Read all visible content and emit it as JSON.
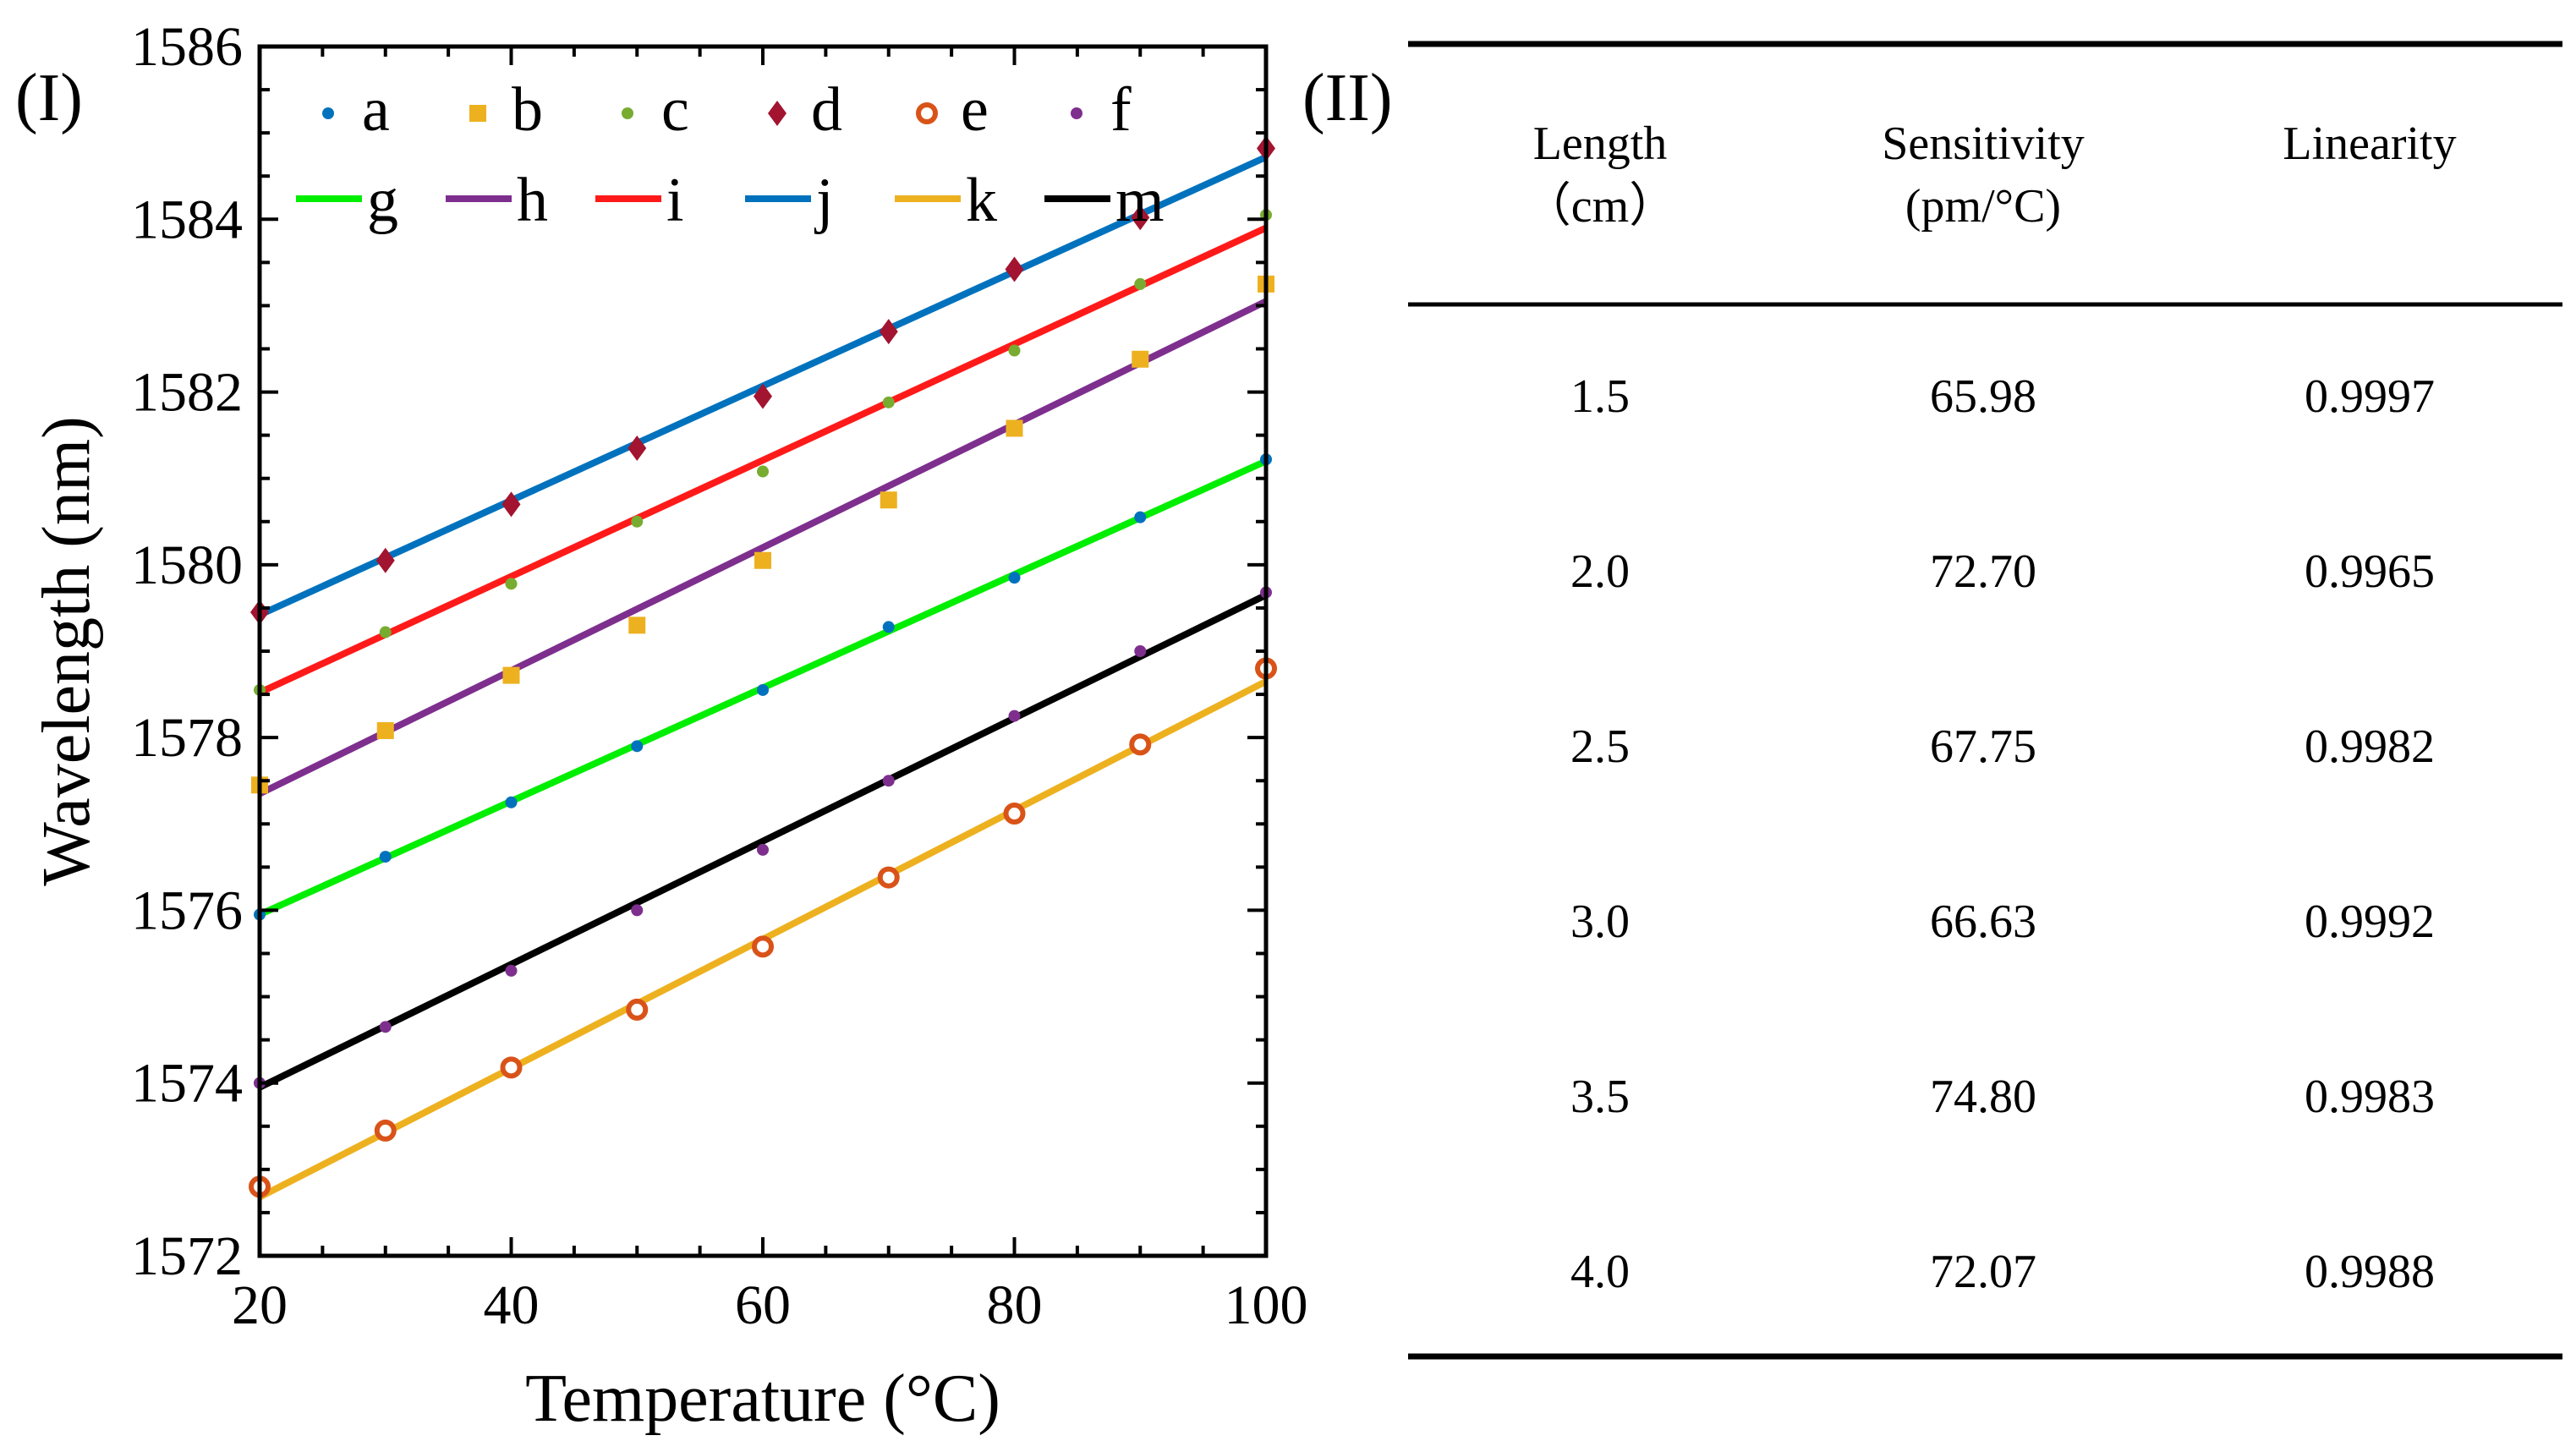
{
  "panels": {
    "left_label": "(I)",
    "right_label": "(II)"
  },
  "chart_data": {
    "type": "scatter",
    "title": "",
    "xlabel": "Temperature (°C)",
    "ylabel": "Wavelength (nm)",
    "xlim": [
      20,
      100
    ],
    "ylim": [
      1572,
      1586
    ],
    "xticks": [
      20,
      40,
      60,
      80,
      100
    ],
    "yticks": [
      1572,
      1574,
      1576,
      1578,
      1580,
      1582,
      1584,
      1586
    ],
    "grid": false,
    "legend_position": "top-left",
    "x": [
      20,
      30,
      40,
      50,
      60,
      70,
      80,
      90,
      100
    ],
    "scatter_series": [
      {
        "name": "a",
        "marker": "circle-small",
        "color": "#0072BD",
        "values": [
          1575.95,
          1576.62,
          1577.25,
          1577.9,
          1578.55,
          1579.28,
          1579.85,
          1580.55,
          1581.22
        ]
      },
      {
        "name": "b",
        "marker": "square",
        "color": "#EDB120",
        "values": [
          1577.45,
          1578.08,
          1578.72,
          1579.3,
          1580.05,
          1580.75,
          1581.58,
          1582.38,
          1583.25
        ]
      },
      {
        "name": "c",
        "marker": "circle-small",
        "color": "#77AC30",
        "values": [
          1578.55,
          1579.22,
          1579.78,
          1580.5,
          1581.08,
          1581.88,
          1582.48,
          1583.25,
          1584.05
        ]
      },
      {
        "name": "d",
        "marker": "diamond",
        "color": "#A2142F",
        "values": [
          1579.45,
          1580.05,
          1580.7,
          1581.35,
          1581.95,
          1582.7,
          1583.42,
          1584.02,
          1584.82
        ]
      },
      {
        "name": "e",
        "marker": "circle-open",
        "color": "#D95319",
        "values": [
          1572.8,
          1573.45,
          1574.18,
          1574.85,
          1575.58,
          1576.38,
          1577.12,
          1577.92,
          1578.8
        ]
      },
      {
        "name": "f",
        "marker": "circle-small",
        "color": "#7E2F8E",
        "values": [
          1574.0,
          1574.65,
          1575.3,
          1576.0,
          1576.7,
          1577.5,
          1578.25,
          1579.0,
          1579.68
        ]
      }
    ],
    "fit_series": [
      {
        "name": "g",
        "color": "#00EE00",
        "start": 1575.95,
        "end": 1581.2
      },
      {
        "name": "h",
        "color": "#7E2F8E",
        "start": 1577.35,
        "end": 1583.05
      },
      {
        "name": "i",
        "color": "#FF1A1A",
        "start": 1578.52,
        "end": 1583.9
      },
      {
        "name": "j",
        "color": "#0072BD",
        "start": 1579.42,
        "end": 1584.72
      },
      {
        "name": "k",
        "color": "#EDB120",
        "start": 1572.68,
        "end": 1578.65
      },
      {
        "name": "m",
        "color": "#000000",
        "start": 1573.95,
        "end": 1579.65
      }
    ]
  },
  "table": {
    "headers": [
      {
        "line1": "Length",
        "line2": "（cm）"
      },
      {
        "line1": "Sensitivity",
        "line2": "(pm/°C)"
      },
      {
        "line1": "Linearity",
        "line2": ""
      }
    ],
    "rows": [
      {
        "length": "1.5",
        "sensitivity": "65.98",
        "linearity": "0.9997"
      },
      {
        "length": "2.0",
        "sensitivity": "72.70",
        "linearity": "0.9965"
      },
      {
        "length": "2.5",
        "sensitivity": "67.75",
        "linearity": "0.9982"
      },
      {
        "length": "3.0",
        "sensitivity": "66.63",
        "linearity": "0.9992"
      },
      {
        "length": "3.5",
        "sensitivity": "74.80",
        "linearity": "0.9983"
      },
      {
        "length": "4.0",
        "sensitivity": "72.07",
        "linearity": "0.9988"
      }
    ]
  }
}
